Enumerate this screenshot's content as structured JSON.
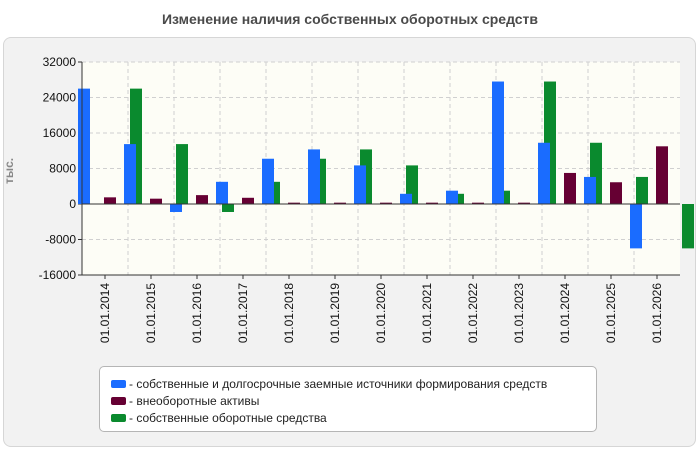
{
  "chart_data": {
    "type": "bar",
    "title": "Изменение наличия собственных оборотных средств",
    "ylabel": "тыс.",
    "xlabel": "",
    "ylim": [
      -16000,
      32000
    ],
    "yticks": [
      32000,
      24000,
      16000,
      8000,
      0,
      -8000,
      -16000
    ],
    "ytick_labels": [
      "32000",
      "24000",
      "16000",
      "8000",
      "0",
      "-8000",
      "-16000"
    ],
    "grid": true,
    "legend_position": "bottom",
    "categories": [
      "01.01.2014",
      "01.01.2015",
      "01.01.2016",
      "01.01.2017",
      "01.01.2018",
      "01.01.2019",
      "01.01.2020",
      "01.01.2021",
      "01.01.2022",
      "01.01.2023",
      "01.01.2024",
      "01.01.2025",
      "01.01.2026"
    ],
    "series": [
      {
        "name": "собственные и долгосрочные заемные источники формирования средств",
        "color": "#1a6cff",
        "values": [
          26000,
          13500,
          -1800,
          5000,
          10200,
          12300,
          8700,
          2300,
          3000,
          27600,
          13800,
          6100,
          -10000
        ]
      },
      {
        "name": "внеоборотные активы",
        "color": "#660033",
        "values": [
          1500,
          1200,
          2000,
          1400,
          300,
          300,
          300,
          300,
          300,
          300,
          7000,
          4900,
          13000
        ]
      },
      {
        "name": "собственные оборотные средства",
        "color": "#0a8a2e",
        "values": [
          26000,
          13500,
          -1800,
          5000,
          10200,
          12300,
          8700,
          2300,
          3000,
          27600,
          13800,
          6100,
          -10000
        ]
      }
    ]
  }
}
